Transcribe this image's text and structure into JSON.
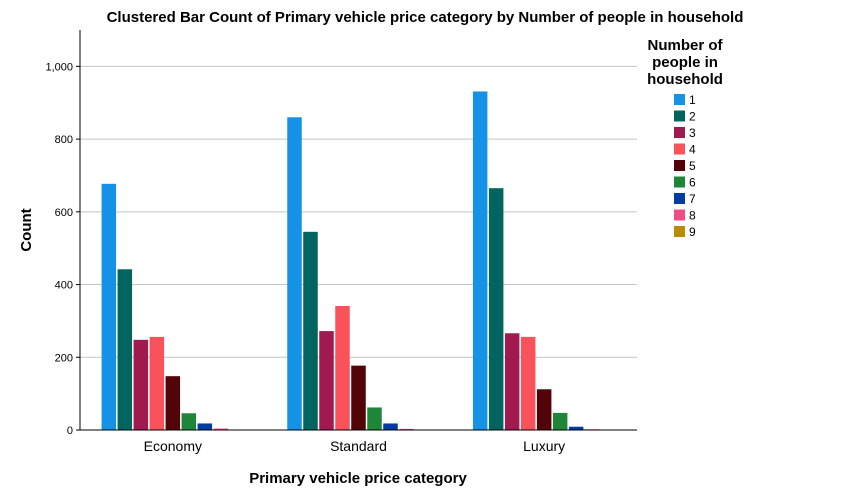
{
  "chart_data": {
    "type": "bar",
    "title": "Clustered Bar Count of Primary vehicle price category by Number of people in household",
    "xlabel": "Primary vehicle price category",
    "ylabel": "Count",
    "ylim": [
      0,
      1100
    ],
    "yticks": [
      0,
      200,
      400,
      600,
      800,
      1000
    ],
    "ytick_labels": [
      "0",
      "200",
      "400",
      "600",
      "800",
      "1,000"
    ],
    "grid": true,
    "legend_title": "Number of people in household",
    "legend_position": "right",
    "categories": [
      "Economy",
      "Standard",
      "Luxury"
    ],
    "series": [
      {
        "name": "1",
        "color": "#1592e6",
        "values": [
          677,
          860,
          931
        ]
      },
      {
        "name": "2",
        "color": "#01645e",
        "values": [
          442,
          545,
          665
        ]
      },
      {
        "name": "3",
        "color": "#a0194f",
        "values": [
          248,
          272,
          266
        ]
      },
      {
        "name": "4",
        "color": "#f9525b",
        "values": [
          256,
          341,
          256
        ]
      },
      {
        "name": "5",
        "color": "#520408",
        "values": [
          148,
          177,
          112
        ]
      },
      {
        "name": "6",
        "color": "#1f8538",
        "values": [
          46,
          62,
          47
        ]
      },
      {
        "name": "7",
        "color": "#023ba1",
        "values": [
          18,
          18,
          9
        ]
      },
      {
        "name": "8",
        "color": "#f04d88",
        "values": [
          4,
          3,
          2
        ]
      },
      {
        "name": "9",
        "color": "#ba8b06",
        "values": [
          1,
          1,
          1
        ]
      }
    ]
  }
}
